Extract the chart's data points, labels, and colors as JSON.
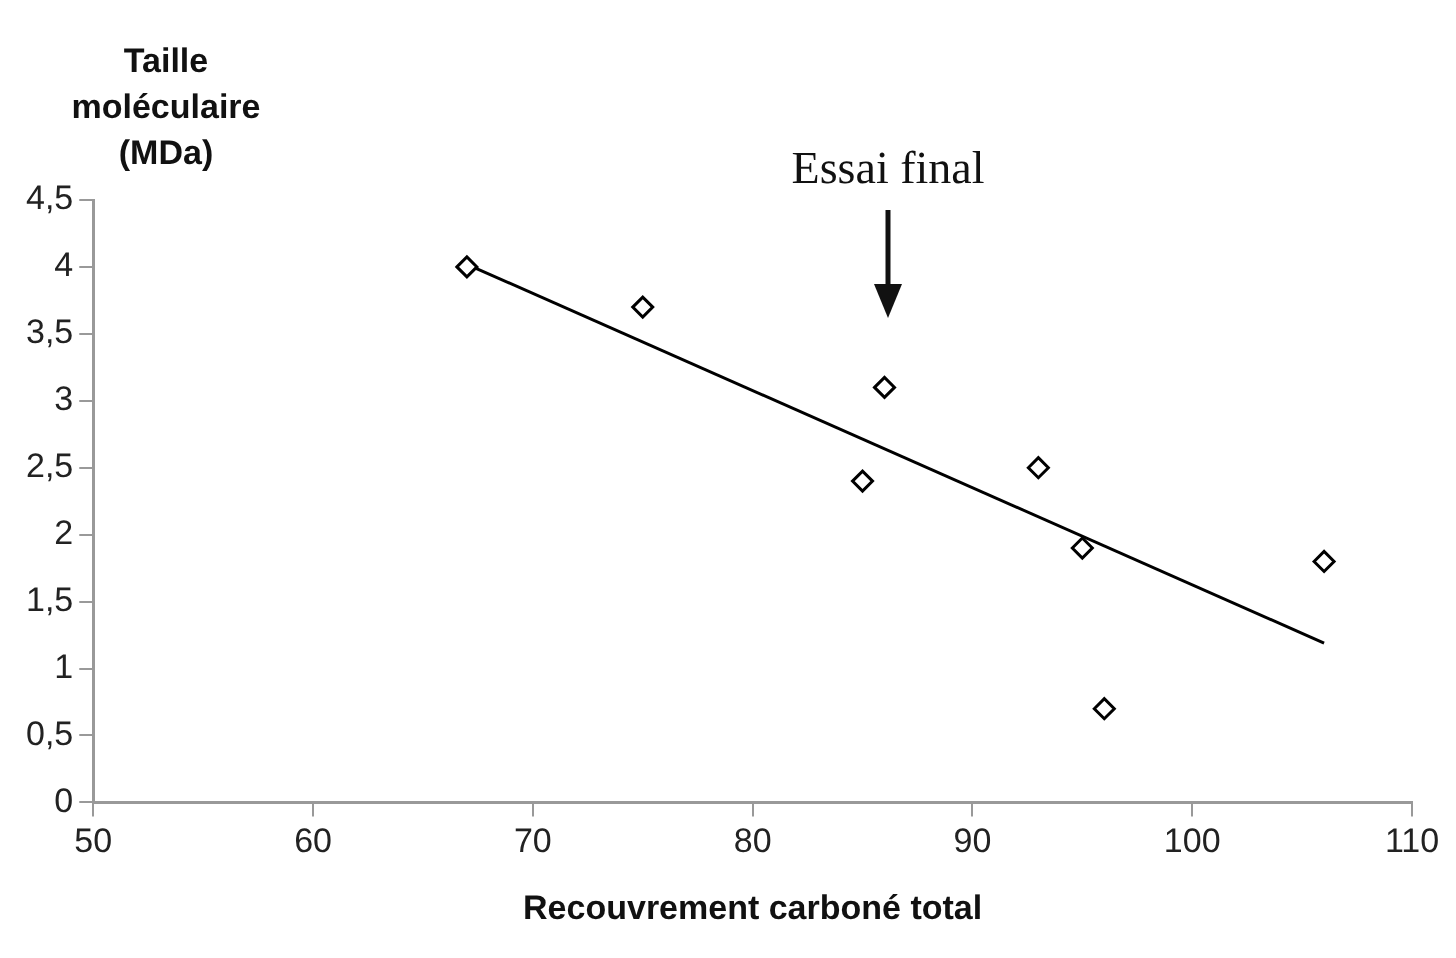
{
  "chart_data": {
    "type": "scatter",
    "xlabel": "Recouvrement carboné total",
    "ylabel": "Taille moléculaire (MDa)",
    "xlim": [
      50,
      110
    ],
    "xticks": [
      50,
      60,
      70,
      80,
      90,
      100,
      110
    ],
    "ylim": [
      0,
      4.5
    ],
    "yticks": [
      0,
      {
        "value": 0.5,
        "label": "0,5"
      },
      1,
      {
        "value": 1.5,
        "label": "1,5"
      },
      2,
      {
        "value": 2.5,
        "label": "2,5"
      },
      3,
      {
        "value": 3.5,
        "label": "3,5"
      },
      4,
      {
        "value": 4.5,
        "label": "4,5"
      }
    ],
    "grid": false,
    "legend": false,
    "annotations": [
      "Essai final"
    ],
    "series": [
      {
        "marker": "diamond",
        "color": "#000000",
        "x": [
          67,
          75,
          85,
          86,
          93,
          95,
          96,
          106
        ],
        "values": [
          4.0,
          3.7,
          2.4,
          3.1,
          2.5,
          1.9,
          0.7,
          1.8
        ]
      },
      {
        "type": "line",
        "marker": "none",
        "color": "#000000",
        "x": [
          67,
          106
        ],
        "values": [
          4.02,
          1.19
        ]
      }
    ]
  }
}
